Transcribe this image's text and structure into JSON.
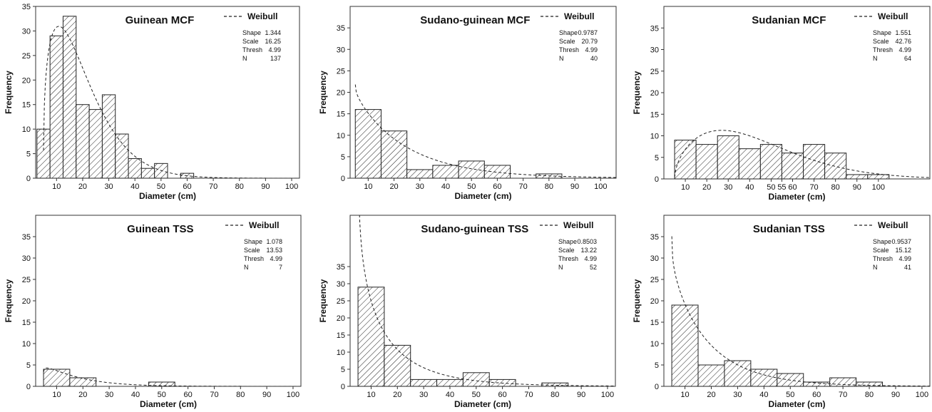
{
  "chart_data": [
    {
      "type": "bar",
      "title": "Guinean MCF",
      "xlabel": "Diameter (cm)",
      "ylabel": "Frequency",
      "legend": "Weibull",
      "legend_position": "top-right",
      "stats": [
        {
          "label": "Shape",
          "value": "1.344"
        },
        {
          "label": "Scale",
          "value": "16.25"
        },
        {
          "label": "Thresh",
          "value": "4.99"
        },
        {
          "label": "N",
          "value": "137"
        }
      ],
      "xlim": [
        2,
        103
      ],
      "ylim": [
        0,
        35
      ],
      "xticks": [
        10,
        20,
        30,
        40,
        50,
        60,
        70,
        80,
        90,
        100
      ],
      "yticks": [
        0,
        5,
        10,
        15,
        20,
        25,
        30,
        35
      ],
      "bin_edges": [
        2.5,
        7.5,
        12.5,
        17.5,
        22.5,
        27.5,
        32.5,
        37.5,
        42.5,
        47.5,
        52.5,
        57.5,
        62.5
      ],
      "values": [
        10,
        29,
        33,
        15,
        14,
        17,
        9,
        4,
        2,
        3,
        0,
        1
      ],
      "fit": {
        "shape": 1.344,
        "scale": 16.25,
        "thresh": 4.99,
        "n": 137,
        "binwidth": 5
      }
    },
    {
      "type": "bar",
      "title": "Sudano-guinean MCF",
      "xlabel": "Diameter (cm)",
      "ylabel": "Frequency",
      "legend": "Weibull",
      "legend_position": "top-right",
      "stats": [
        {
          "label": "Shape",
          "value": "0.9787"
        },
        {
          "label": "Scale",
          "value": "20.79"
        },
        {
          "label": "Thresh",
          "value": "4.99"
        },
        {
          "label": "N",
          "value": "40"
        }
      ],
      "xlim": [
        3,
        106
      ],
      "ylim": [
        0,
        40
      ],
      "xticks": [
        10,
        20,
        30,
        40,
        50,
        60,
        70,
        80,
        90,
        100
      ],
      "yticks": [
        0,
        5,
        10,
        15,
        20,
        25,
        30,
        35
      ],
      "bin_edges": [
        5,
        15,
        25,
        35,
        45,
        55,
        65,
        75,
        85
      ],
      "values": [
        16,
        11,
        2,
        3,
        4,
        3,
        0,
        1
      ],
      "fit": {
        "shape": 0.9787,
        "scale": 20.79,
        "thresh": 4.99,
        "n": 40,
        "binwidth": 10
      }
    },
    {
      "type": "bar",
      "title": "Sudanian MCF",
      "xlabel": "Diameter (cm)",
      "ylabel": "Frequency",
      "legend": "Weibull",
      "legend_position": "top-right",
      "stats": [
        {
          "label": "Shape",
          "value": "1.551"
        },
        {
          "label": "Scale",
          "value": "42.76"
        },
        {
          "label": "Thresh",
          "value": "4.99"
        },
        {
          "label": "N",
          "value": "64"
        }
      ],
      "xlim": [
        0,
        124
      ],
      "ylim": [
        0,
        40
      ],
      "xticks": [
        10,
        20,
        30,
        40,
        50,
        55,
        60,
        70,
        80,
        90,
        100
      ],
      "xtick_positions": [
        10,
        20,
        30,
        40,
        50,
        55,
        60,
        70,
        80,
        90,
        100
      ],
      "yticks": [
        0,
        5,
        10,
        15,
        20,
        25,
        30,
        35
      ],
      "bin_edges": [
        5,
        15,
        25,
        35,
        45,
        55,
        65,
        75,
        85,
        95,
        105
      ],
      "values": [
        9,
        8,
        10,
        7,
        8,
        6,
        8,
        6,
        1,
        1
      ],
      "fit": {
        "shape": 1.551,
        "scale": 42.76,
        "thresh": 4.99,
        "n": 64,
        "binwidth": 10
      }
    },
    {
      "type": "bar",
      "title": "Guinean TSS",
      "xlabel": "Diameter (cm)",
      "ylabel": "Frequency",
      "legend": "Weibull",
      "legend_position": "top-right",
      "stats": [
        {
          "label": "Shape",
          "value": "1.078"
        },
        {
          "label": "Scale",
          "value": "13.53"
        },
        {
          "label": "Thresh",
          "value": "4.99"
        },
        {
          "label": "N",
          "value": "7"
        }
      ],
      "xlim": [
        2,
        103
      ],
      "ylim": [
        0,
        40
      ],
      "xticks": [
        10,
        20,
        30,
        40,
        50,
        60,
        70,
        80,
        90,
        100
      ],
      "yticks": [
        0,
        5,
        10,
        15,
        20,
        25,
        30,
        35
      ],
      "bin_edges": [
        5,
        15,
        25,
        35,
        45,
        55
      ],
      "values": [
        4,
        2,
        0,
        0,
        1
      ],
      "fit": {
        "shape": 1.078,
        "scale": 13.53,
        "thresh": 4.99,
        "n": 7,
        "binwidth": 10
      }
    },
    {
      "type": "bar",
      "title": "Sudano-guinean TSS",
      "xlabel": "Diameter (cm)",
      "ylabel": "Frequency",
      "legend": "Weibull",
      "legend_position": "top-right",
      "stats": [
        {
          "label": "Shape",
          "value": "0.8503"
        },
        {
          "label": "Scale",
          "value": "13.22"
        },
        {
          "label": "Thresh",
          "value": "4.99"
        },
        {
          "label": "N",
          "value": "52"
        }
      ],
      "xlim": [
        2,
        103
      ],
      "ylim": [
        0,
        50
      ],
      "xticks": [
        10,
        20,
        30,
        40,
        50,
        60,
        70,
        80,
        90,
        100
      ],
      "yticks": [
        0,
        5,
        10,
        15,
        20,
        25,
        30,
        35
      ],
      "bin_edges": [
        5,
        15,
        25,
        35,
        45,
        55,
        65,
        75,
        85
      ],
      "values": [
        29,
        12,
        2,
        2,
        4,
        2,
        0,
        1
      ],
      "fit": {
        "shape": 0.8503,
        "scale": 13.22,
        "thresh": 4.99,
        "n": 52,
        "binwidth": 10
      }
    },
    {
      "type": "bar",
      "title": "Sudanian TSS",
      "xlabel": "Diameter (cm)",
      "ylabel": "Frequency",
      "legend": "Weibull",
      "legend_position": "top-right",
      "stats": [
        {
          "label": "Shape",
          "value": "0.9537"
        },
        {
          "label": "Scale",
          "value": "15.12"
        },
        {
          "label": "Thresh",
          "value": "4.99"
        },
        {
          "label": "N",
          "value": "41"
        }
      ],
      "xlim": [
        2,
        103
      ],
      "ylim": [
        0,
        40
      ],
      "xticks": [
        10,
        20,
        30,
        40,
        50,
        60,
        70,
        80,
        90,
        100
      ],
      "yticks": [
        0,
        5,
        10,
        15,
        20,
        25,
        30,
        35
      ],
      "bin_edges": [
        5,
        15,
        25,
        35,
        45,
        55,
        65,
        75,
        85
      ],
      "values": [
        19,
        5,
        6,
        4,
        3,
        1,
        2,
        1
      ],
      "fit": {
        "shape": 0.9537,
        "scale": 15.12,
        "thresh": 4.99,
        "n": 41,
        "binwidth": 10
      }
    }
  ]
}
